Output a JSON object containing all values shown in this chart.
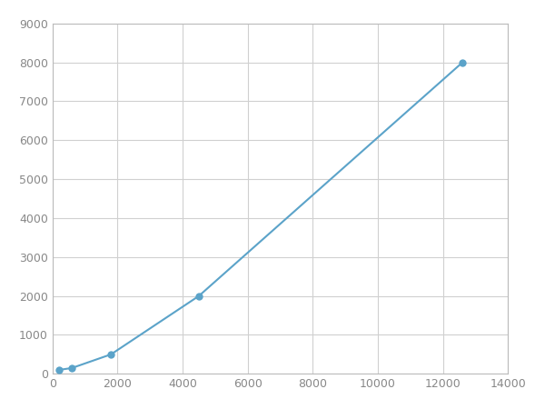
{
  "x": [
    200,
    600,
    1800,
    4500,
    12600
  ],
  "y": [
    100,
    150,
    500,
    2000,
    8000
  ],
  "line_color": "#5ba3c9",
  "marker_color": "#5ba3c9",
  "marker_size": 6,
  "line_width": 1.5,
  "xlim": [
    0,
    14000
  ],
  "ylim": [
    0,
    9000
  ],
  "xticks": [
    0,
    2000,
    4000,
    6000,
    8000,
    10000,
    12000,
    14000
  ],
  "yticks": [
    0,
    1000,
    2000,
    3000,
    4000,
    5000,
    6000,
    7000,
    8000,
    9000
  ],
  "grid_color": "#d0d0d0",
  "grid_alpha": 1.0,
  "bg_color": "#ffffff",
  "spine_color": "#bbbbbb",
  "tick_color": "#888888",
  "tick_fontsize": 9
}
